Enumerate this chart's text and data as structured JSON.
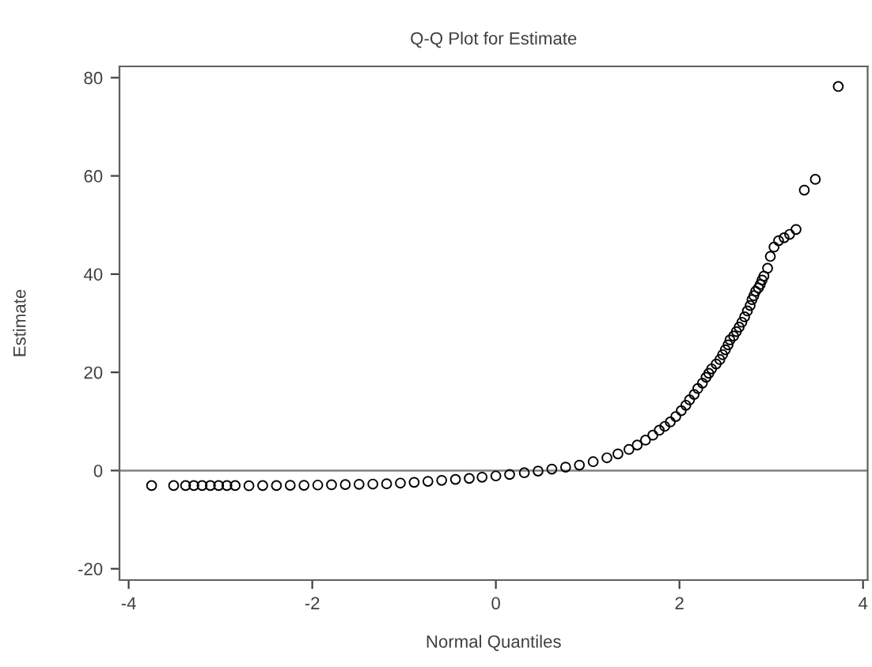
{
  "chart_data": {
    "type": "scatter",
    "title": "Q-Q Plot for Estimate",
    "xlabel": "Normal Quantiles",
    "ylabel": "Estimate",
    "x": [
      -3.75,
      -3.51,
      -3.38,
      -3.29,
      -3.2,
      -3.11,
      -3.02,
      -2.93,
      -2.84,
      -2.69,
      -2.54,
      -2.39,
      -2.24,
      -2.09,
      -1.94,
      -1.79,
      -1.64,
      -1.49,
      -1.34,
      -1.19,
      -1.04,
      -0.89,
      -0.74,
      -0.59,
      -0.44,
      -0.29,
      -0.15,
      0,
      0.15,
      0.31,
      0.46,
      0.61,
      0.76,
      0.91,
      1.06,
      1.21,
      1.33,
      1.45,
      1.54,
      1.63,
      1.71,
      1.78,
      1.84,
      1.9,
      1.96,
      2.02,
      2.07,
      2.11,
      2.16,
      2.2,
      2.25,
      2.29,
      2.32,
      2.35,
      2.4,
      2.44,
      2.47,
      2.5,
      2.53,
      2.55,
      2.59,
      2.62,
      2.65,
      2.68,
      2.71,
      2.74,
      2.77,
      2.79,
      2.81,
      2.83,
      2.86,
      2.88,
      2.9,
      2.92,
      2.96,
      2.99,
      3.03,
      3.08,
      3.14,
      3.2,
      3.27,
      3.36,
      3.48,
      3.73
    ],
    "values": [
      -3.05,
      -3.05,
      -3.05,
      -3.05,
      -3.05,
      -3.05,
      -3.05,
      -3.05,
      -3.05,
      -3.1,
      -3.05,
      -3.05,
      -3.0,
      -3.0,
      -2.95,
      -2.9,
      -2.85,
      -2.8,
      -2.75,
      -2.7,
      -2.55,
      -2.4,
      -2.2,
      -2.0,
      -1.8,
      -1.6,
      -1.35,
      -1.1,
      -0.8,
      -0.45,
      -0.1,
      0.3,
      0.7,
      1.1,
      1.8,
      2.6,
      3.4,
      4.3,
      5.2,
      6.2,
      7.2,
      8.2,
      9.0,
      9.9,
      11.0,
      12.2,
      13.3,
      14.4,
      15.5,
      16.7,
      17.8,
      19.0,
      19.8,
      20.7,
      21.7,
      22.6,
      23.6,
      24.6,
      25.6,
      26.6,
      27.4,
      28.3,
      29.2,
      30.2,
      31.3,
      32.5,
      33.6,
      34.8,
      35.6,
      36.5,
      37.2,
      37.9,
      38.8,
      39.6,
      41.2,
      43.6,
      45.5,
      46.8,
      47.4,
      48.1,
      49.1,
      57.1,
      59.3,
      78.2
    ],
    "color": "#000000",
    "marker": "circle",
    "xlim": [
      -4.1,
      4.05
    ],
    "ylim": [
      -22.3,
      82.3
    ],
    "xticks": [
      -4,
      -2,
      0,
      2,
      4
    ],
    "yticks": [
      -20,
      0,
      20,
      40,
      60,
      80
    ],
    "ref_lines": [
      {
        "axis": "y",
        "value": 0,
        "color": "#808080"
      }
    ],
    "grid": false
  }
}
